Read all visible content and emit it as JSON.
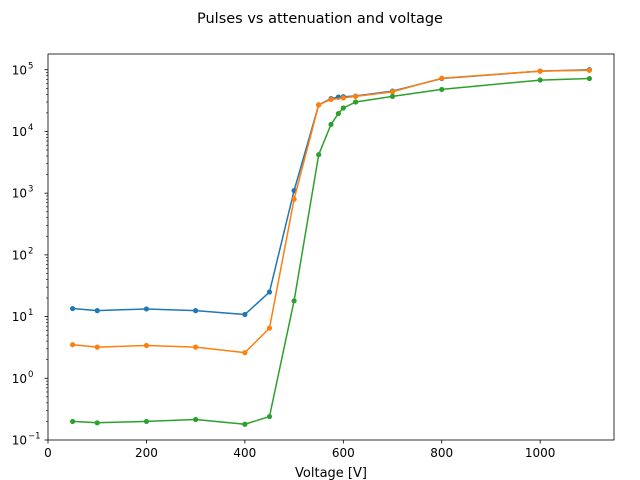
{
  "chart_data": {
    "type": "line",
    "title": "Pulses vs attenuation and voltage",
    "xlabel": "Voltage [V]",
    "ylabel": "",
    "xlim": [
      0,
      1150
    ],
    "ylim": [
      0.1,
      180000
    ],
    "yscale": "log",
    "grid": false,
    "legend": "none",
    "x_ticks": [
      0,
      200,
      400,
      600,
      800,
      1000
    ],
    "y_ticks": [
      {
        "value": 0.1,
        "base": "10",
        "exp": "−1"
      },
      {
        "value": 1,
        "base": "10",
        "exp": "0"
      },
      {
        "value": 10,
        "base": "10",
        "exp": "1"
      },
      {
        "value": 100,
        "base": "10",
        "exp": "2"
      },
      {
        "value": 1000,
        "base": "10",
        "exp": "3"
      },
      {
        "value": 10000,
        "base": "10",
        "exp": "4"
      },
      {
        "value": 100000,
        "base": "10",
        "exp": "5"
      }
    ],
    "series": [
      {
        "color": "#1f77b4",
        "x": [
          50,
          100,
          200,
          300,
          400,
          450,
          500,
          550,
          575,
          590,
          600,
          625,
          700,
          800,
          1000,
          1100
        ],
        "y": [
          13.5,
          12.5,
          13.3,
          12.5,
          10.8,
          25,
          1100,
          27000,
          34000,
          36000,
          36500,
          37500,
          45000,
          72000,
          95000,
          100000
        ]
      },
      {
        "color": "#ff7f0e",
        "x": [
          50,
          100,
          200,
          300,
          400,
          450,
          500,
          550,
          575,
          600,
          625,
          700,
          800,
          1000,
          1100
        ],
        "y": [
          3.5,
          3.2,
          3.4,
          3.2,
          2.6,
          6.5,
          800,
          27000,
          33000,
          35000,
          37000,
          44000,
          73000,
          95000,
          98000
        ]
      },
      {
        "color": "#2ca02c",
        "x": [
          50,
          100,
          200,
          300,
          400,
          450,
          500,
          550,
          575,
          590,
          600,
          625,
          700,
          800,
          1000,
          1100
        ],
        "y": [
          0.2,
          0.19,
          0.2,
          0.215,
          0.18,
          0.24,
          18,
          4200,
          13000,
          19500,
          24000,
          30000,
          37000,
          48000,
          68000,
          72000
        ]
      }
    ]
  }
}
